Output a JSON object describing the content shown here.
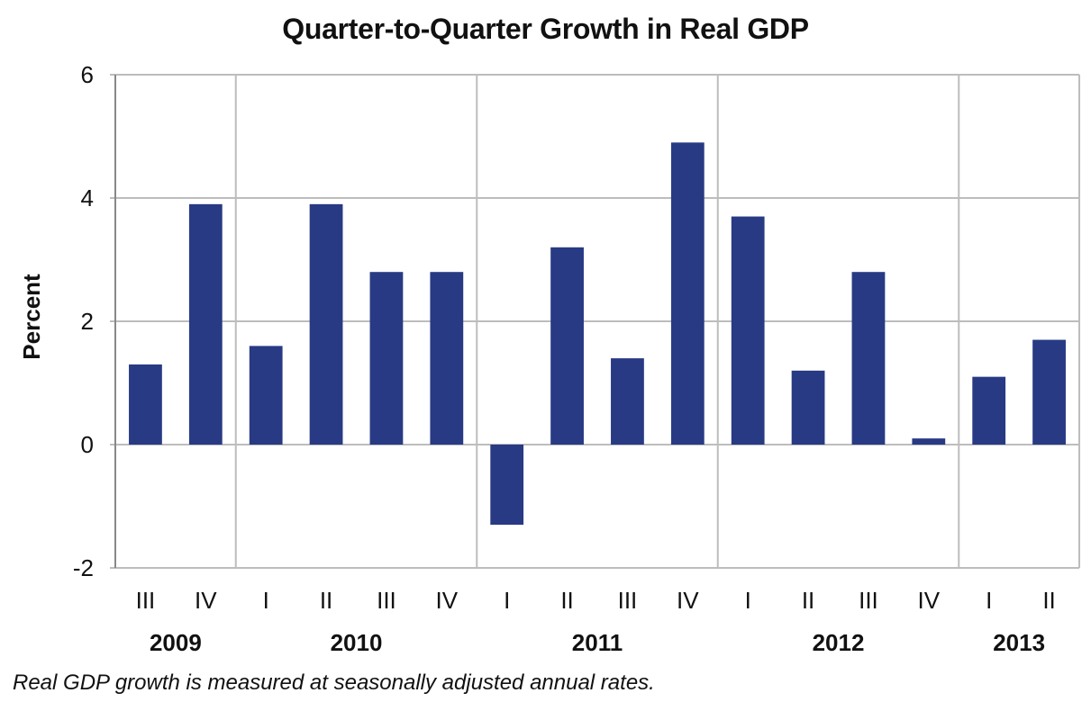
{
  "chart_data": {
    "type": "bar",
    "title": "Quarter-to-Quarter Growth in Real GDP",
    "ylabel": "Percent",
    "xlabel": "",
    "ylim": [
      -2,
      6
    ],
    "yticks": [
      -2,
      0,
      2,
      4,
      6
    ],
    "grid": true,
    "categories": [
      "III",
      "IV",
      "I",
      "II",
      "III",
      "IV",
      "I",
      "II",
      "III",
      "IV",
      "I",
      "II",
      "III",
      "IV",
      "I",
      "II"
    ],
    "years": [
      {
        "label": "2009",
        "start": 0,
        "end": 1
      },
      {
        "label": "2010",
        "start": 2,
        "end": 5
      },
      {
        "label": "2011",
        "start": 6,
        "end": 9
      },
      {
        "label": "2012",
        "start": 10,
        "end": 13
      },
      {
        "label": "2013",
        "start": 14,
        "end": 15
      }
    ],
    "series": [
      {
        "values": [
          1.3,
          3.9,
          1.6,
          3.9,
          2.8,
          2.8,
          -1.3,
          3.2,
          1.4,
          4.9,
          3.7,
          1.2,
          2.8,
          0.1,
          1.1,
          1.7
        ]
      }
    ],
    "colors": {
      "bar": "#283a84",
      "grid": "#bdbdbd",
      "axis": "#888888"
    }
  },
  "footnote": "Real GDP growth is measured at seasonally adjusted annual rates."
}
